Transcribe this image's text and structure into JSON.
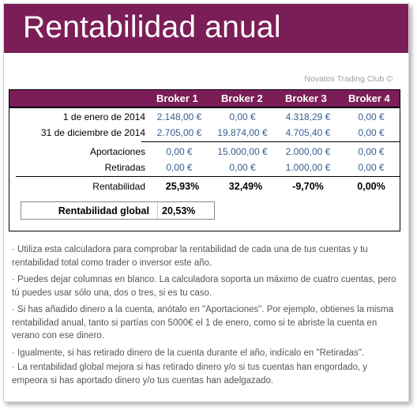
{
  "banner": {
    "title": "Rentabilidad anual"
  },
  "watermark": "Novatos Trading Club ©",
  "table": {
    "headers": [
      "Broker 1",
      "Broker 2",
      "Broker 3",
      "Broker 4"
    ],
    "rows": {
      "start": {
        "label": "1 de enero de 2014",
        "values": [
          "2.148,00 €",
          "0,00 €",
          "4.318,29 €",
          "0,00 €"
        ]
      },
      "end": {
        "label": "31 de diciembre de 2014",
        "values": [
          "2.705,00 €",
          "19.874,00 €",
          "4.705,40 €",
          "0,00 €"
        ]
      },
      "contrib": {
        "label": "Aportaciones",
        "values": [
          "0,00 €",
          "15.000,00 €",
          "2.000,00 €",
          "0,00 €"
        ]
      },
      "withdraw": {
        "label": "Retiradas",
        "values": [
          "0,00 €",
          "0,00 €",
          "1.000,00 €",
          "0,00 €"
        ]
      },
      "profit": {
        "label": "Rentabilidad",
        "values": [
          "25,93%",
          "32,49%",
          "-9,70%",
          "0,00%"
        ]
      }
    },
    "global": {
      "label": "Rentabilidad global",
      "value": "20,53%"
    }
  },
  "notes": [
    "· Utiliza esta calculadora para comprobar la rentabilidad de cada una de tus cuentas y tu rentabilidad total como trader o inversor este año.",
    "· Puedes dejar columnas en blanco. La calculadora soporta un máximo de cuatro cuentas, pero tú puedes usar sólo una, dos o tres, si es tu caso.",
    "· Si has añadido dinero a la cuenta, anótalo en \"Aportaciones\". Por ejemplo, obtienes  la misma rentabilidad anual, tanto si partías con 5000€ el 1 de enero, como si te abriste la cuenta en verano con ese dinero.",
    "· Igualmente, si has retirado dinero de la cuenta durante el año, indícalo en \"Retiradas\".",
    "· La rentabilidad global mejora si has retirado dinero y/o si tus cuentas han engordado, y empeora si has aportado dinero y/o tus cuentas han adelgazado."
  ],
  "colors": {
    "brand": "#7b1e57",
    "input_value": "#376092"
  }
}
